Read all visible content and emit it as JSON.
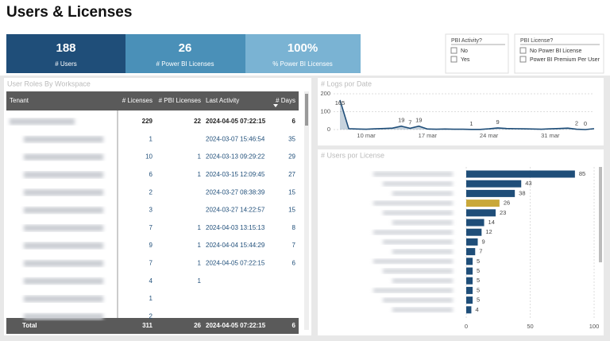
{
  "header": {
    "title": "Users & Licenses"
  },
  "kpis": [
    {
      "value": "188",
      "label": "# Users"
    },
    {
      "value": "26",
      "label": "# Power BI Licenses"
    },
    {
      "value": "100%",
      "label": "% Power BI Licenses"
    }
  ],
  "filters": [
    {
      "title": "PBI Activity?",
      "options": [
        "No",
        "Yes"
      ]
    },
    {
      "title": "PBI License?",
      "options": [
        "No Power BI License",
        "Power BI Premium Per User"
      ]
    }
  ],
  "table": {
    "title": "User Roles By Workspace",
    "columns": [
      "Tenant",
      "# Licenses",
      "# PBI Licenses",
      "Last Activity",
      "# Days"
    ],
    "rows": [
      {
        "licenses": 229,
        "pbi_licenses": 22,
        "last_activity": "2024-04-05 07:22:15",
        "days": 6
      },
      {
        "licenses": 1,
        "last_activity": "2024-03-07 15:46:54",
        "days": 35
      },
      {
        "licenses": 10,
        "pbi_licenses": 1,
        "last_activity": "2024-03-13 09:29:22",
        "days": 29
      },
      {
        "licenses": 6,
        "pbi_licenses": 1,
        "last_activity": "2024-03-15 12:09:45",
        "days": 27
      },
      {
        "licenses": 2,
        "last_activity": "2024-03-27 08:38:39",
        "days": 15
      },
      {
        "licenses": 3,
        "last_activity": "2024-03-27 14:22:57",
        "days": 15
      },
      {
        "licenses": 7,
        "pbi_licenses": 1,
        "last_activity": "2024-04-03 13:15:13",
        "days": 8
      },
      {
        "licenses": 9,
        "pbi_licenses": 1,
        "last_activity": "2024-04-04 15:44:29",
        "days": 7
      },
      {
        "licenses": 7,
        "pbi_licenses": 1,
        "last_activity": "2024-04-05 07:22:15",
        "days": 6
      },
      {
        "licenses": 4,
        "pbi_licenses": 1
      },
      {
        "licenses": 1
      },
      {
        "licenses": 2
      }
    ],
    "total": {
      "label": "Total",
      "licenses": 311,
      "pbi_licenses": 26,
      "last_activity": "2024-04-05 07:22:15",
      "days": 6
    }
  },
  "chart_data": [
    {
      "type": "line",
      "title": "# Logs por Date",
      "color": "#1f4e79",
      "categories": [
        null,
        null,
        null,
        "10 mar",
        null,
        null,
        null,
        null,
        null,
        null,
        "17 mar",
        null,
        null,
        null,
        null,
        null,
        null,
        "24 mar",
        null,
        null,
        null,
        null,
        null,
        null,
        "31 mar",
        null,
        null,
        null,
        null,
        null
      ],
      "values": [
        165,
        5,
        3,
        2,
        4,
        6,
        8,
        19,
        7,
        19,
        3,
        2,
        3,
        2,
        2,
        1,
        1,
        4,
        9,
        6,
        5,
        4,
        3,
        2,
        4,
        6,
        8,
        2,
        0,
        5
      ],
      "value_labels": [
        "165",
        null,
        null,
        null,
        null,
        null,
        null,
        "19",
        "7",
        "19",
        null,
        null,
        null,
        null,
        null,
        "1",
        null,
        null,
        "9",
        null,
        null,
        null,
        null,
        null,
        null,
        null,
        null,
        "2",
        "0",
        null
      ],
      "ylim": [
        0,
        200
      ],
      "yticks": [
        0,
        100,
        200
      ],
      "grid": true
    },
    {
      "type": "hbar",
      "title": "# Users por License",
      "categories": [
        null,
        null,
        null,
        null,
        null,
        null,
        null,
        null,
        null,
        null,
        null,
        null,
        null,
        null,
        null
      ],
      "values": [
        85,
        43,
        38,
        26,
        23,
        14,
        12,
        9,
        7,
        5,
        5,
        5,
        5,
        5,
        4
      ],
      "colors": [
        "#1f4e79",
        "#1f4e79",
        "#1f4e79",
        "#c9a83a",
        "#1f4e79",
        "#1f4e79",
        "#1f4e79",
        "#1f4e79",
        "#1f4e79",
        "#1f4e79",
        "#1f4e79",
        "#1f4e79",
        "#1f4e79",
        "#1f4e79",
        "#1f4e79"
      ],
      "xlim": [
        0,
        100
      ],
      "xticks": [
        0,
        50,
        100
      ],
      "grid": true
    }
  ]
}
